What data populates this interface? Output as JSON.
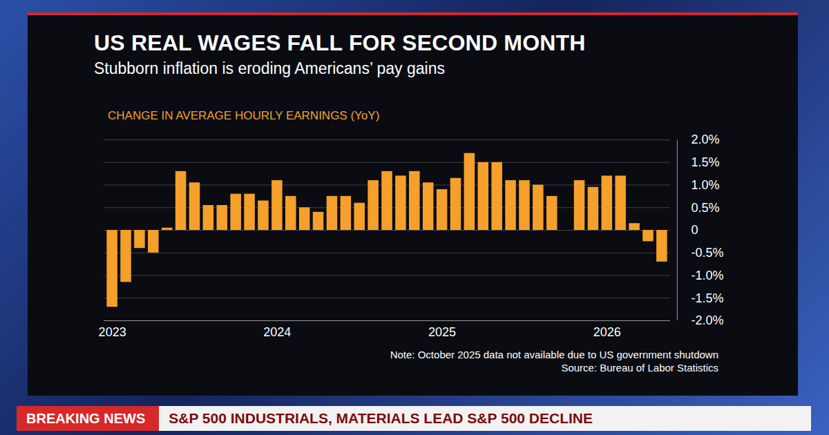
{
  "chart_data": {
    "type": "bar",
    "title": "US REAL WAGES FALL FOR SECOND MONTH",
    "subtitle": "Stubborn inflation is eroding Americans’ pay gains",
    "ylabel": "CHANGE IN AVERAGE HOURLY EARNINGS (YoY)",
    "note": "Note: October 2025 data not available due to US government shutdown",
    "source": "Source: Bureau of Labor Statistics",
    "categories": [
      "2023",
      null,
      null,
      null,
      null,
      null,
      null,
      null,
      null,
      null,
      null,
      null,
      "2024",
      null,
      null,
      null,
      null,
      null,
      null,
      null,
      null,
      null,
      null,
      null,
      "2025",
      null,
      null,
      null,
      null,
      null,
      null,
      null,
      null,
      null,
      null,
      null,
      "2026",
      null,
      null,
      null,
      null
    ],
    "values": [
      -1.7,
      -1.15,
      -0.4,
      -0.5,
      0.05,
      1.3,
      1.05,
      0.55,
      0.55,
      0.8,
      0.8,
      0.65,
      1.1,
      0.75,
      0.5,
      0.4,
      0.75,
      0.75,
      0.6,
      1.1,
      1.3,
      1.2,
      1.3,
      1.05,
      0.9,
      1.15,
      1.7,
      1.5,
      1.5,
      1.1,
      1.1,
      1.0,
      0.75,
      null,
      1.1,
      0.95,
      1.2,
      1.2,
      0.15,
      -0.25,
      -0.7
    ],
    "color": "#f5a02a",
    "ylim": [
      -2,
      2
    ],
    "yticks": [
      {
        "value": -2,
        "label": "-2.0%"
      },
      {
        "value": -1.5,
        "label": "-1.5%"
      },
      {
        "value": -1,
        "label": "-1.0%"
      },
      {
        "value": -0.5,
        "label": "-0.5%"
      },
      0,
      {
        "value": 0.5,
        "label": "0.5%"
      },
      {
        "value": 1,
        "label": "1.0%"
      },
      {
        "value": 1.5,
        "label": "1.5%"
      },
      {
        "value": 2,
        "label": "2.0%"
      }
    ],
    "grid": true
  },
  "banner": {
    "label": "BREAKING NEWS",
    "headline": "S&P 500 INDUSTRIALS, MATERIALS LEAD S&P 500 DECLINE"
  }
}
